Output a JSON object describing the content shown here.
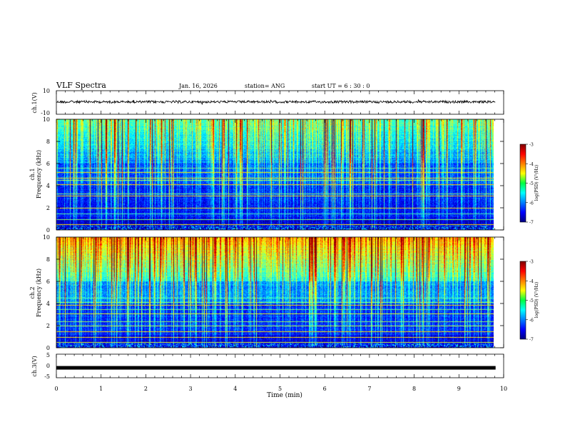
{
  "header": {
    "title": "VLF Spectra",
    "date": "Jan. 16, 2026",
    "station": "station= ANG",
    "start_ut": "start  UT =   6 : 30 : 0"
  },
  "chart_data": [
    {
      "type": "line",
      "name": "ch1-waveform",
      "ylabel": "ch.1(V)",
      "ylim": [
        -10,
        10
      ],
      "yticks": [
        "10",
        "-10"
      ],
      "level": 0.5
    },
    {
      "type": "heatmap",
      "name": "ch1-spectrogram",
      "ylabel": [
        "ch.1",
        "Frequency  (kHz)"
      ],
      "ylim": [
        0,
        10
      ],
      "yticks": [
        "10",
        "8",
        "6",
        "4",
        "2",
        "0"
      ],
      "colorbar": {
        "label": "log(PSD) (V²/Hz)",
        "range": [
          -7,
          -3
        ],
        "ticks": [
          "-3",
          "-4",
          "-5",
          "-6",
          "-7"
        ]
      },
      "strong_lines_khz": [
        0.5,
        1.0,
        1.5,
        2.0,
        3.1,
        3.3,
        4.1,
        4.5,
        4.7,
        5.2,
        5.6
      ]
    },
    {
      "type": "heatmap",
      "name": "ch2-spectrogram",
      "ylabel": [
        "ch.2",
        "Frequency  (kHz)"
      ],
      "ylim": [
        0,
        10
      ],
      "yticks": [
        "10",
        "8",
        "6",
        "4",
        "2",
        "0"
      ],
      "colorbar": {
        "label": "log(PSD) (V²/Hz)",
        "range": [
          -7,
          -3
        ],
        "ticks": [
          "-3",
          "-4",
          "-5",
          "-6",
          "-7"
        ]
      },
      "strong_lines_khz": [
        0.5,
        1.0,
        1.5,
        2.0,
        2.4,
        3.1,
        3.5,
        3.9,
        4.1,
        4.5
      ]
    },
    {
      "type": "line",
      "name": "ch3-waveform",
      "ylabel": "ch.3(V)",
      "ylim": [
        -5,
        5
      ],
      "yticks": [
        "5",
        "0",
        "-5"
      ],
      "level": -0.8
    }
  ],
  "xaxis": {
    "label": "Time  (min)",
    "ticks": [
      "0",
      "1",
      "2",
      "3",
      "4",
      "5",
      "6",
      "7",
      "8",
      "9",
      "10"
    ],
    "xlim": [
      0,
      10
    ],
    "data_end": 9.82
  }
}
